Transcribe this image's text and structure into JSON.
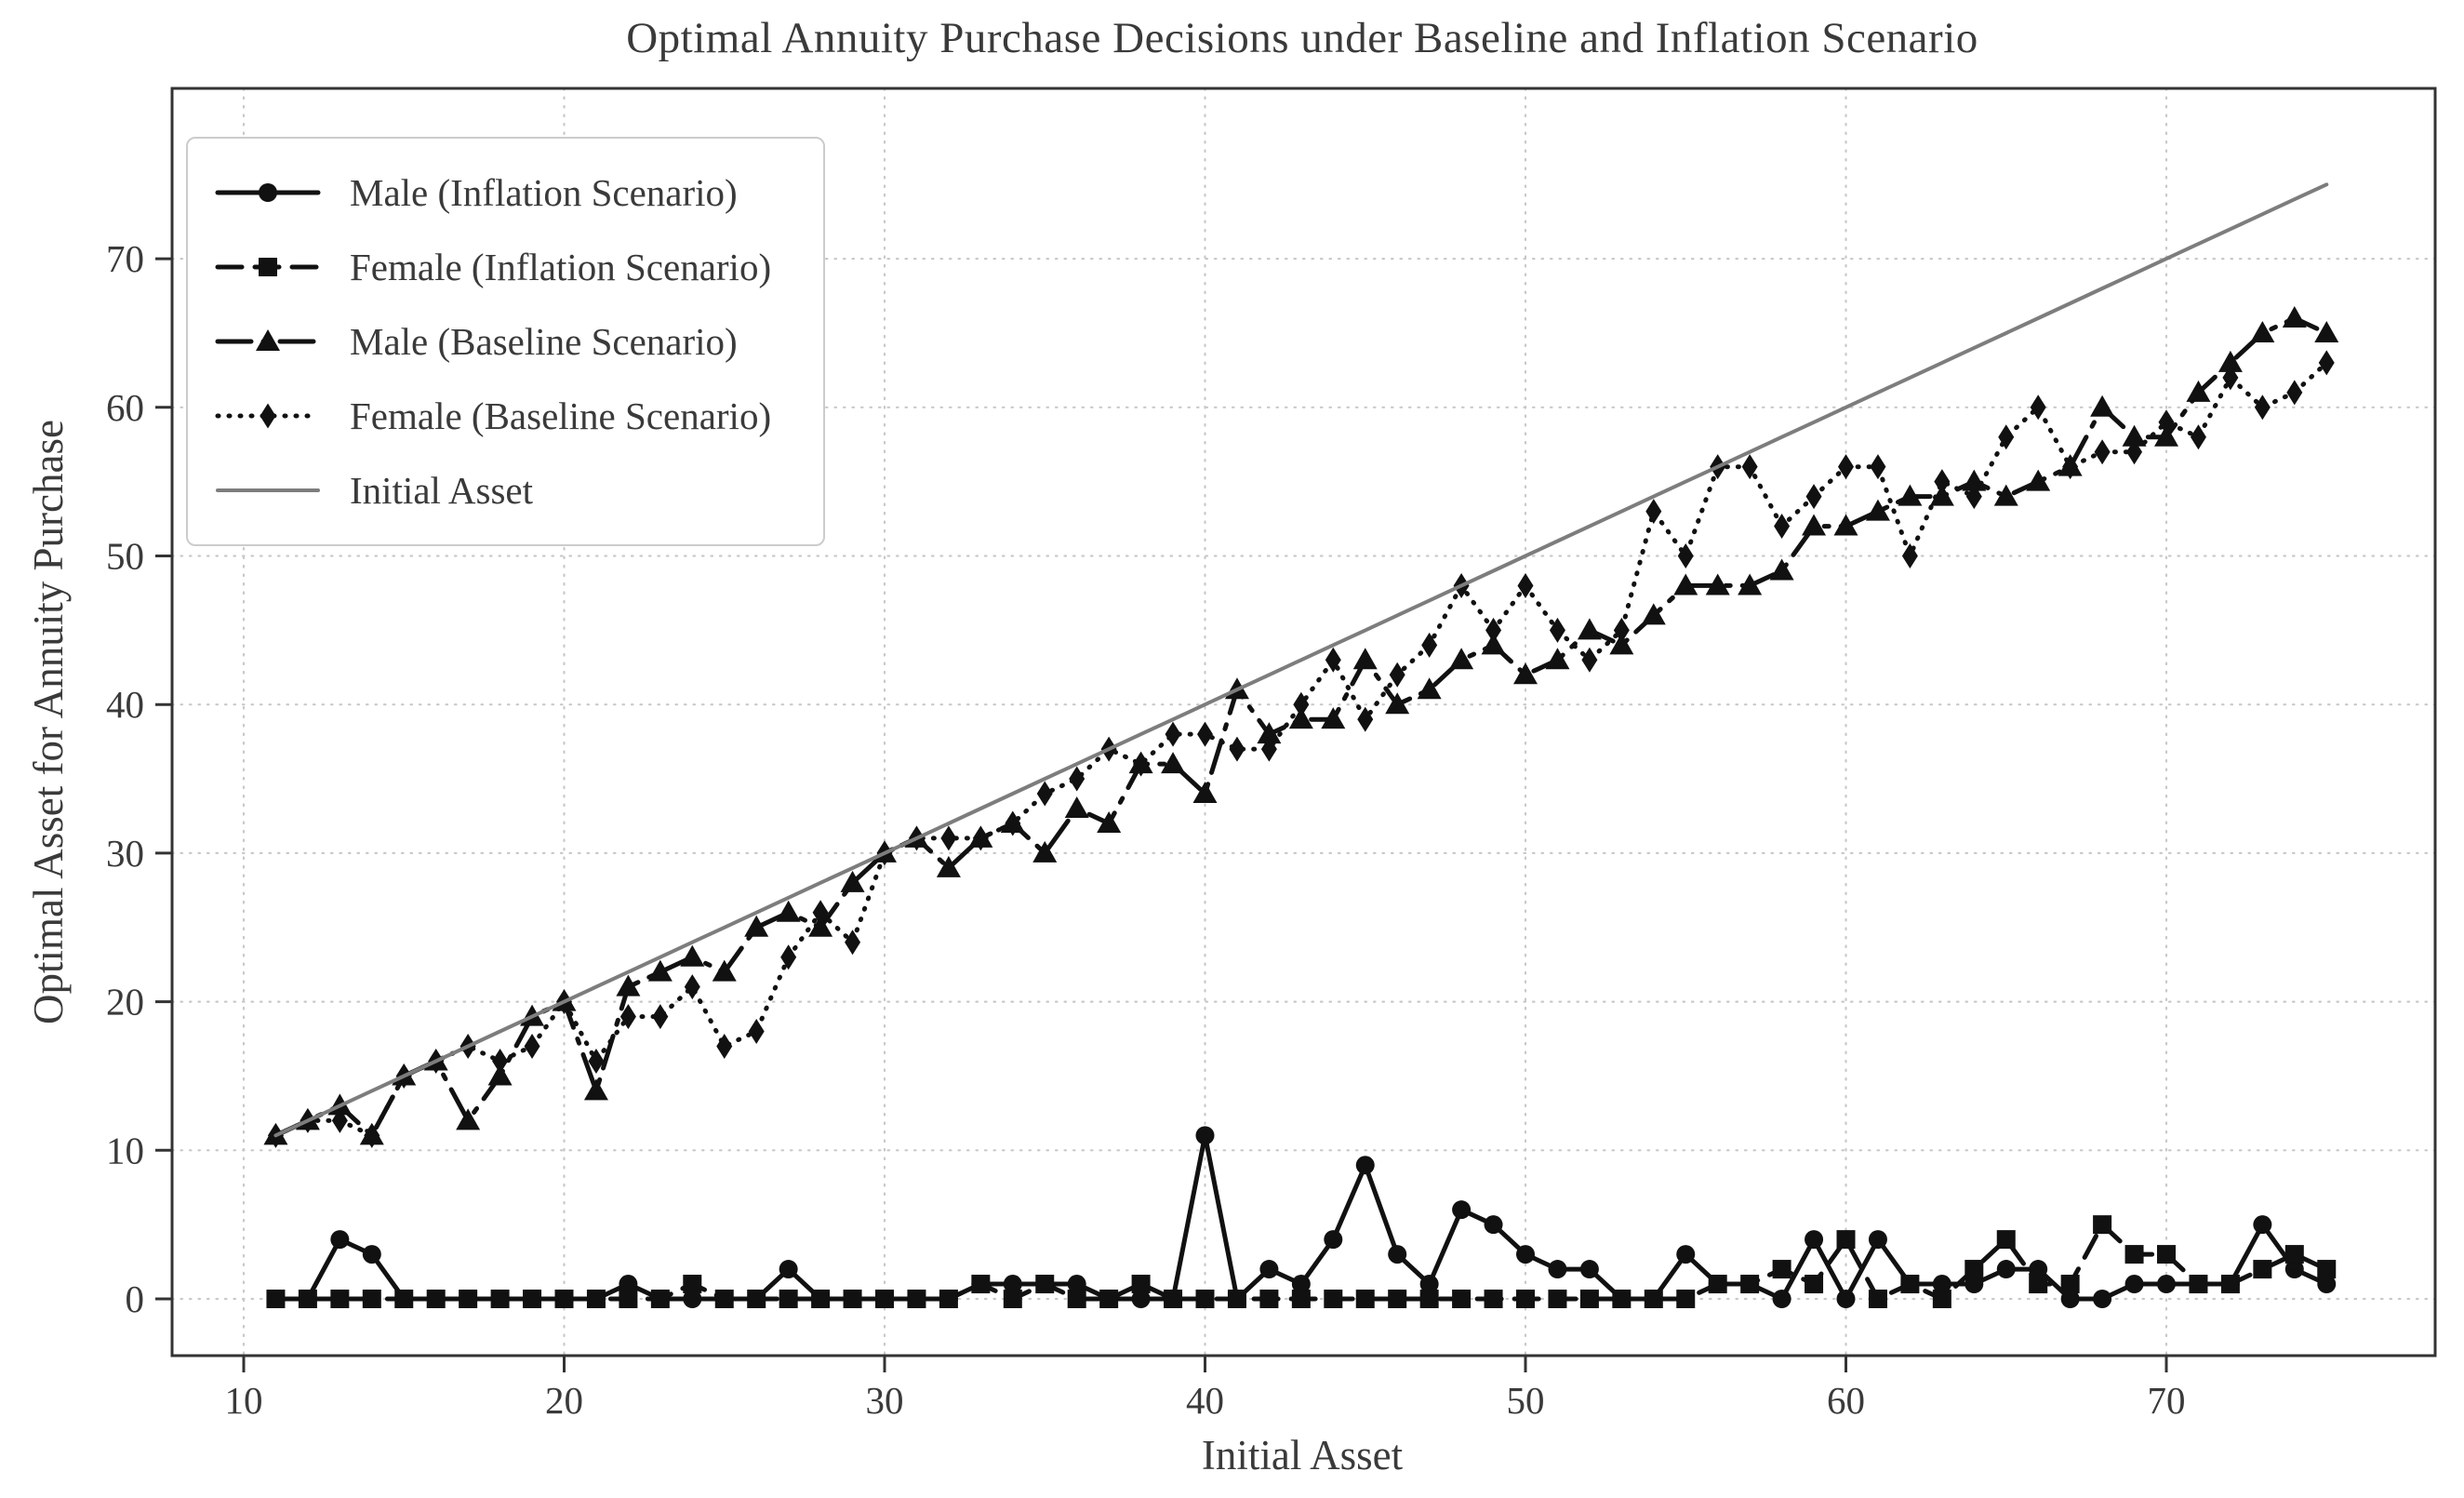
{
  "title": "Optimal Annuity Purchase Decisions under Baseline and Inflation Scenario",
  "colors": {
    "series_black": "#111111",
    "initial_asset_gray": "#7d7d7d",
    "grid": "#c9c9c9",
    "spine": "#333333",
    "text": "#3a3a3a",
    "legend_border": "#cccccc",
    "background": "#ffffff"
  },
  "chart_data": {
    "type": "line",
    "title": "Optimal Annuity Purchase Decisions under Baseline and Inflation Scenario",
    "xlabel": "Initial Asset",
    "ylabel": "Optimal Asset for Annuity Purchase",
    "xlim": [
      8.8,
      77.9
    ],
    "ylim": [
      -3.8,
      81.5
    ],
    "x_ticks": [
      10,
      20,
      30,
      40,
      50,
      60,
      70
    ],
    "y_ticks": [
      0,
      10,
      20,
      30,
      40,
      50,
      60,
      70
    ],
    "grid": "dotted",
    "legend_position": "upper left",
    "x": [
      11,
      12,
      13,
      14,
      15,
      16,
      17,
      18,
      19,
      20,
      21,
      22,
      23,
      24,
      25,
      26,
      27,
      28,
      29,
      30,
      31,
      32,
      33,
      34,
      35,
      36,
      37,
      38,
      39,
      40,
      41,
      42,
      43,
      44,
      45,
      46,
      47,
      48,
      49,
      50,
      51,
      52,
      53,
      54,
      55,
      56,
      57,
      58,
      59,
      60,
      61,
      62,
      63,
      64,
      65,
      66,
      67,
      68,
      69,
      70,
      71,
      72,
      73,
      74,
      75
    ],
    "series": [
      {
        "name": "Male (Inflation Scenario)",
        "style": "solid",
        "marker": "circle",
        "color": "#111111",
        "values": [
          0,
          0,
          4,
          3,
          0,
          0,
          0,
          0,
          0,
          0,
          0,
          1,
          0,
          0,
          0,
          0,
          2,
          0,
          0,
          0,
          0,
          0,
          1,
          1,
          1,
          1,
          0,
          0,
          0,
          11,
          0,
          2,
          1,
          4,
          9,
          3,
          1,
          6,
          5,
          3,
          2,
          2,
          0,
          0,
          3,
          1,
          1,
          0,
          4,
          0,
          4,
          1,
          1,
          1,
          2,
          2,
          0,
          0,
          1,
          1,
          1,
          1,
          5,
          2,
          1
        ]
      },
      {
        "name": "Female (Inflation Scenario)",
        "style": "dashed",
        "marker": "square",
        "color": "#111111",
        "values": [
          0,
          0,
          0,
          0,
          0,
          0,
          0,
          0,
          0,
          0,
          0,
          0,
          0,
          1,
          0,
          0,
          0,
          0,
          0,
          0,
          0,
          0,
          1,
          0,
          1,
          0,
          0,
          1,
          0,
          0,
          0,
          0,
          0,
          0,
          0,
          0,
          0,
          0,
          0,
          0,
          0,
          0,
          0,
          0,
          0,
          1,
          1,
          2,
          1,
          4,
          0,
          1,
          0,
          2,
          4,
          1,
          1,
          5,
          3,
          3,
          1,
          1,
          2,
          3,
          2
        ]
      },
      {
        "name": "Male (Baseline Scenario)",
        "style": "dashdot",
        "marker": "triangle",
        "color": "#111111",
        "values": [
          11,
          12,
          13,
          11,
          15,
          16,
          12,
          15,
          19,
          20,
          14,
          21,
          22,
          23,
          22,
          25,
          26,
          25,
          28,
          30,
          31,
          29,
          31,
          32,
          30,
          33,
          32,
          36,
          36,
          34,
          41,
          38,
          39,
          39,
          43,
          40,
          41,
          43,
          44,
          42,
          43,
          45,
          44,
          46,
          48,
          48,
          48,
          49,
          52,
          52,
          53,
          54,
          54,
          55,
          54,
          55,
          56,
          60,
          58,
          58,
          61,
          63,
          65,
          66,
          65
        ]
      },
      {
        "name": "Female (Baseline Scenario)",
        "style": "dotted",
        "marker": "diamond",
        "color": "#111111",
        "values": [
          11,
          12,
          12,
          11,
          15,
          16,
          17,
          16,
          17,
          20,
          16,
          19,
          19,
          21,
          17,
          18,
          23,
          26,
          24,
          30,
          31,
          31,
          31,
          32,
          34,
          35,
          37,
          36,
          38,
          38,
          37,
          37,
          40,
          43,
          39,
          42,
          44,
          48,
          45,
          48,
          45,
          43,
          45,
          53,
          50,
          56,
          56,
          52,
          54,
          56,
          56,
          50,
          55,
          54,
          58,
          60,
          56,
          57,
          57,
          59,
          58,
          62,
          60,
          61,
          63
        ]
      },
      {
        "name": "Initial Asset",
        "style": "solid",
        "marker": "none",
        "color": "#7d7d7d",
        "values": [
          11,
          12,
          13,
          14,
          15,
          16,
          17,
          18,
          19,
          20,
          21,
          22,
          23,
          24,
          25,
          26,
          27,
          28,
          29,
          30,
          31,
          32,
          33,
          34,
          35,
          36,
          37,
          38,
          39,
          40,
          41,
          42,
          43,
          44,
          45,
          46,
          47,
          48,
          49,
          50,
          51,
          52,
          53,
          54,
          55,
          56,
          57,
          58,
          59,
          60,
          61,
          62,
          63,
          64,
          65,
          66,
          67,
          68,
          69,
          70,
          71,
          72,
          73,
          74,
          75
        ]
      }
    ]
  }
}
